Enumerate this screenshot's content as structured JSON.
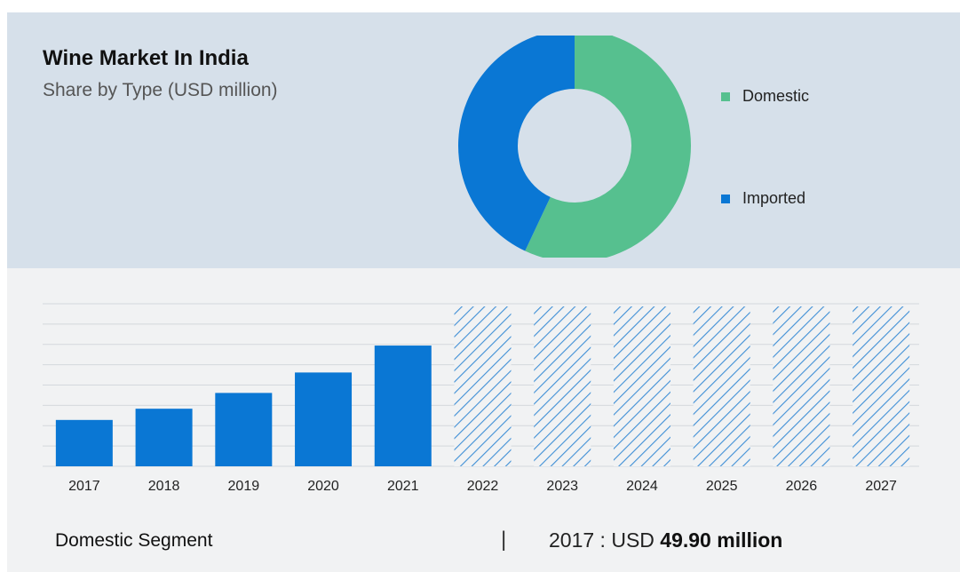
{
  "header": {
    "title": "Wine Market In India",
    "subtitle": "Share by Type (USD million)"
  },
  "footer": {
    "segment_label": "Domestic Segment",
    "separator": "|",
    "value_prefix": "2017 : USD ",
    "value_bold": "49.90 million"
  },
  "colors": {
    "domestic": "#56c08f",
    "imported": "#0a77d4",
    "bar": "#0a77d4",
    "forecast_hatch": "#3f8fd6",
    "grid": "#d4d8dc"
  },
  "chart_data": [
    {
      "type": "pie",
      "variant": "donut",
      "title": "Wine Market In India",
      "subtitle": "Share by Type (USD million)",
      "legend_position": "right",
      "slices": [
        {
          "name": "Domestic",
          "value": 57
        },
        {
          "name": "Imported",
          "value": 43
        }
      ]
    },
    {
      "type": "bar",
      "categories": [
        "2017",
        "2018",
        "2019",
        "2020",
        "2021",
        "2022",
        "2023",
        "2024",
        "2025",
        "2026",
        "2027"
      ],
      "values": [
        49.9,
        62,
        79,
        101,
        130,
        null,
        null,
        null,
        null,
        null,
        null
      ],
      "forecast_categories": [
        "2022",
        "2023",
        "2024",
        "2025",
        "2026",
        "2027"
      ],
      "ylim": [
        0,
        175
      ],
      "grid": true,
      "xlabel": "",
      "ylabel": ""
    }
  ]
}
